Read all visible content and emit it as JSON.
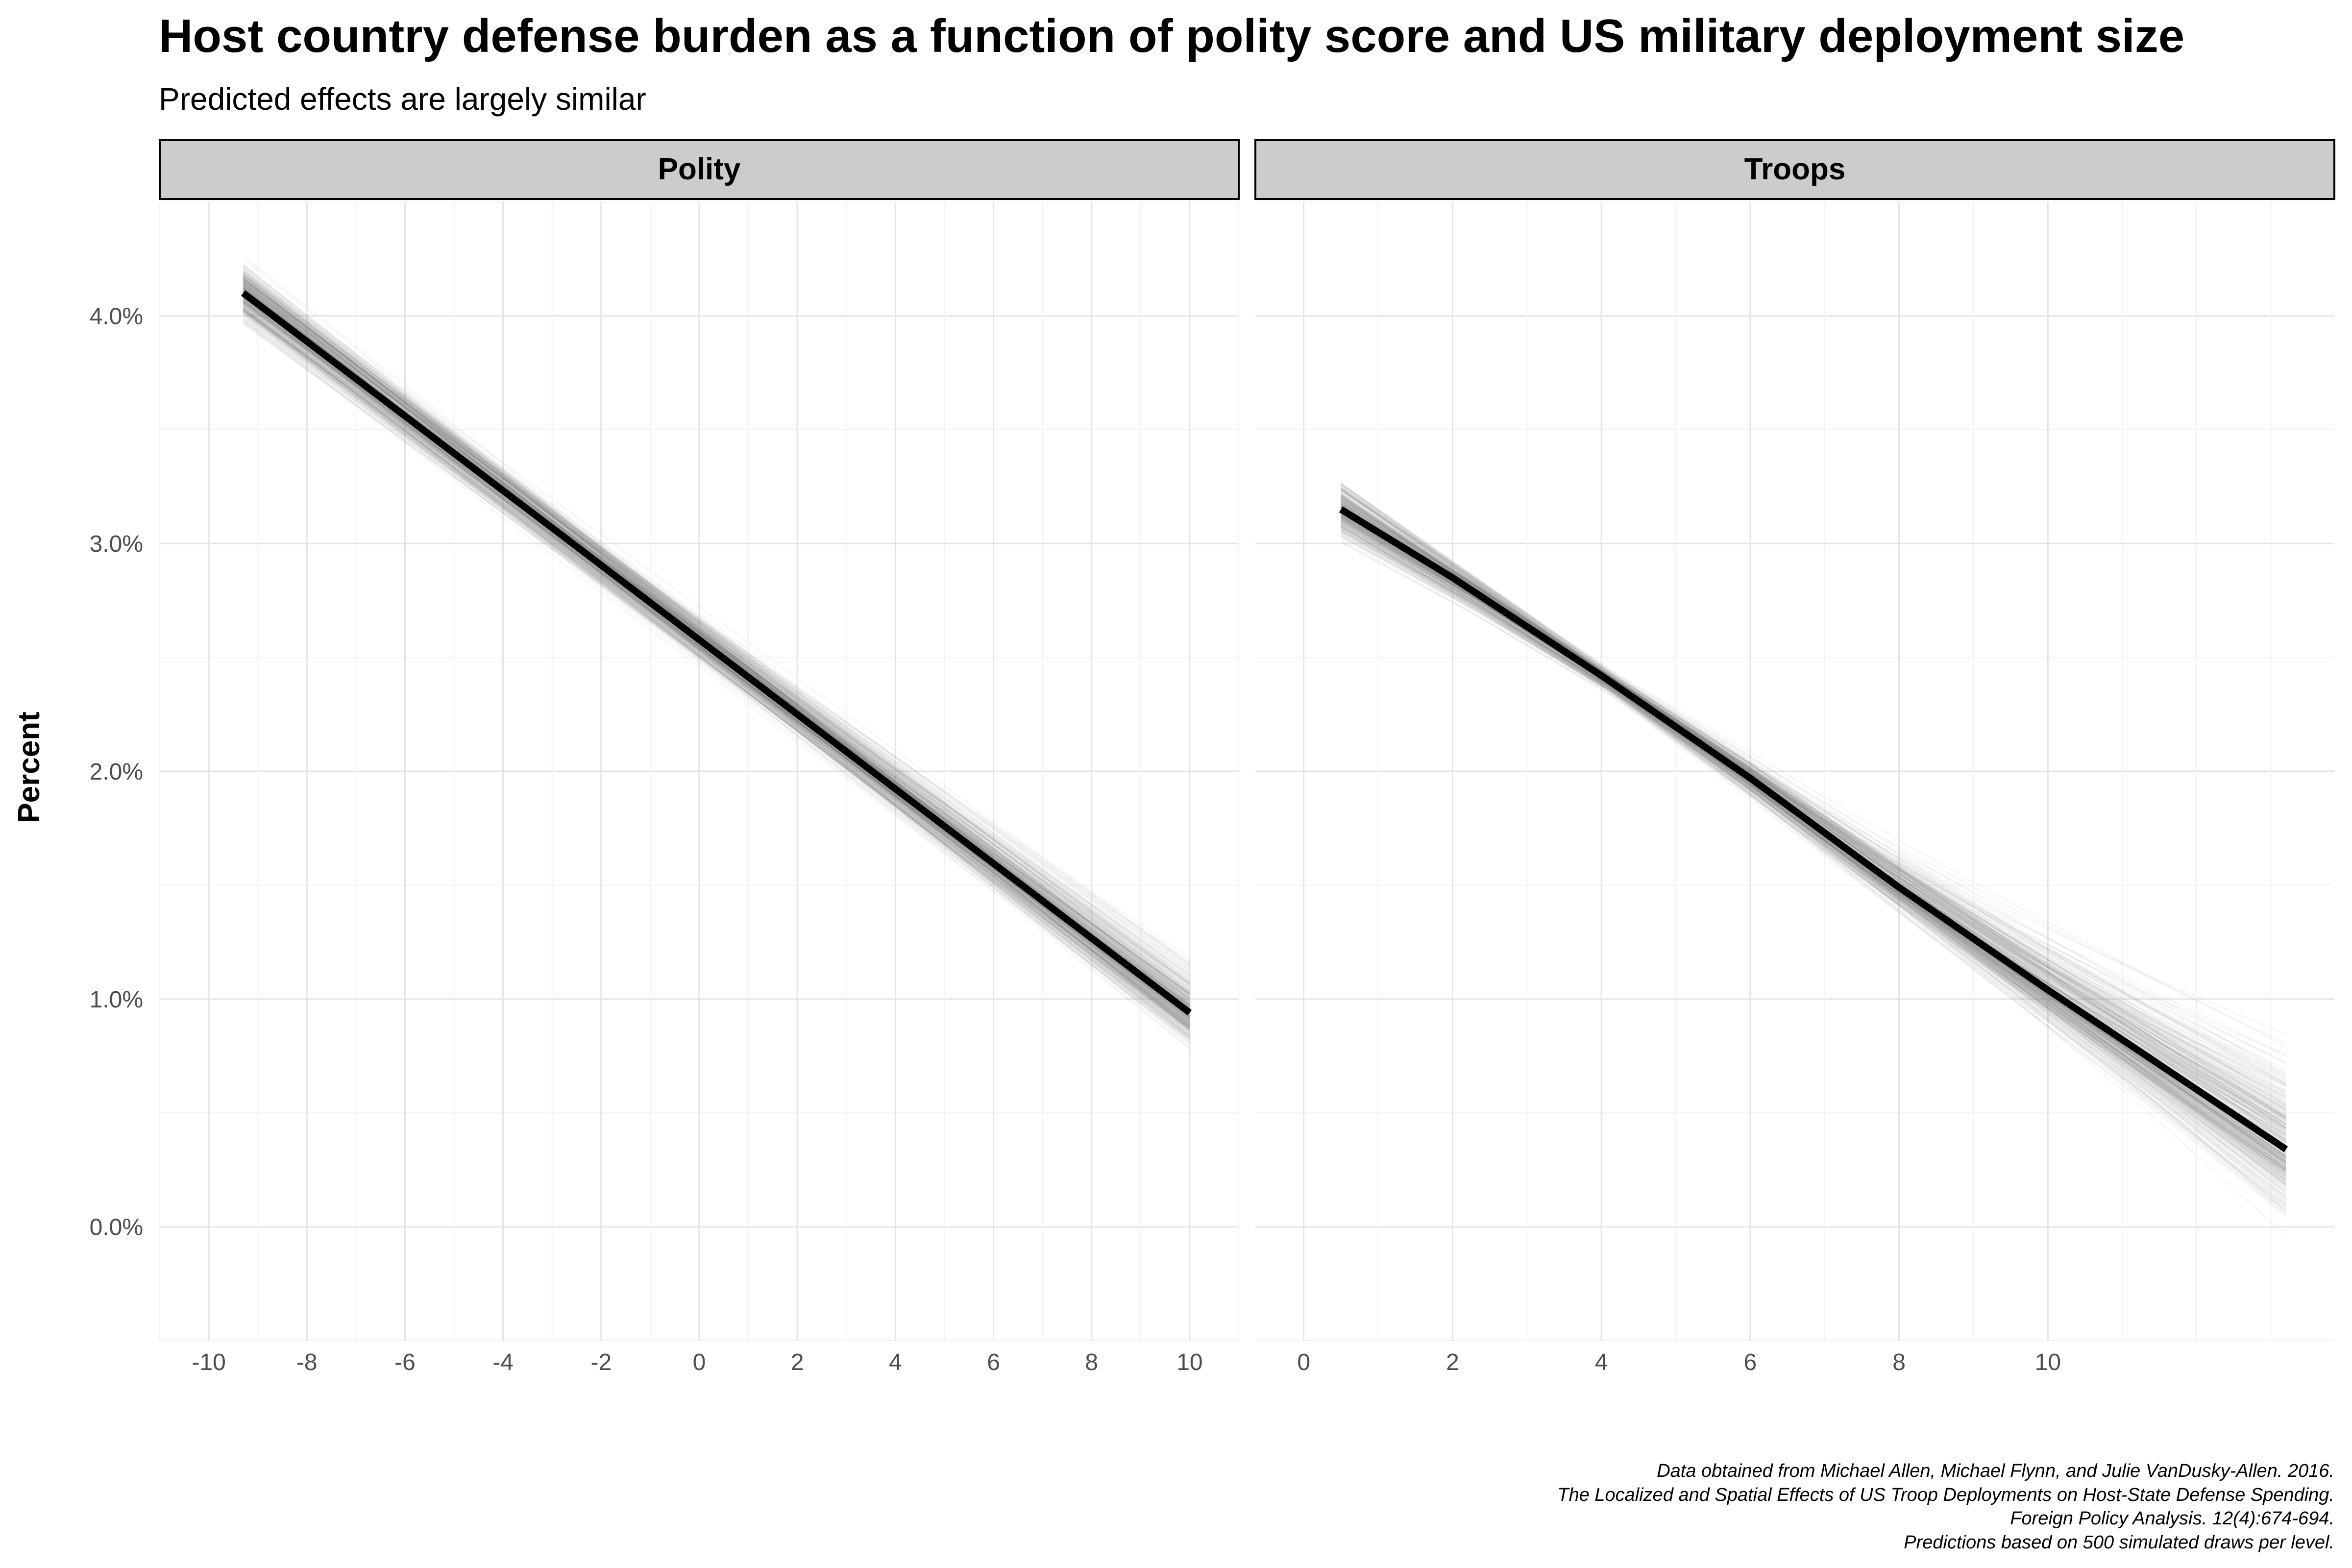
{
  "colors": {
    "background": "#ffffff",
    "strip_fill": "#cccccc",
    "strip_border": "#000000",
    "grid_major": "#e5e5e5",
    "grid_minor": "#f2f2f2",
    "draw_line": "#808080",
    "mean_line": "#000000",
    "tick_text": "#4d4d4d"
  },
  "chart_data": {
    "type": "line",
    "title": "Host country defense burden as a function of polity score and US military deployment size",
    "subtitle": "Predicted effects are largely similar",
    "ylabel": "Percent",
    "caption": [
      "Data obtained from Michael Allen, Michael Flynn, and Julie VanDusky-Allen. 2016.",
      "The Localized and Spatial Effects of US Troop Deployments on Host-State Defense Spending.",
      "Foreign Policy Analysis. 12(4):674-694.",
      "Predictions based on 500 simulated draws per level."
    ],
    "y_unit": "percent",
    "ylim": [
      -0.5,
      4.5
    ],
    "y_ticks": [
      0,
      1,
      2,
      3,
      4
    ],
    "y_tick_labels": [
      "0.0%",
      "1.0%",
      "2.0%",
      "3.0%",
      "4.0%"
    ],
    "grid": true,
    "legend": "none",
    "simulated_draws_per_level": 500,
    "panels": [
      {
        "label": "Polity",
        "xlim": [
          -11,
          11
        ],
        "x_ticks": [
          -10,
          -8,
          -6,
          -4,
          -2,
          0,
          2,
          4,
          6,
          8,
          10
        ],
        "x_tick_labels": [
          "-10",
          "-8",
          "-6",
          "-4",
          "-2",
          "0",
          "2",
          "4",
          "6",
          "8",
          "10"
        ],
        "mean_line": {
          "x": [
            -9.3,
            10
          ],
          "y": [
            4.1,
            0.94
          ]
        },
        "draw_band": {
          "x": [
            -9.3,
            10
          ],
          "y_low": [
            3.8,
            0.65
          ],
          "y_high": [
            4.38,
            1.35
          ]
        }
      },
      {
        "label": "Troops",
        "xlim": [
          -0.65,
          13.85
        ],
        "x_ticks": [
          0,
          2,
          4,
          6,
          8,
          10
        ],
        "x_tick_labels": [
          "0",
          "2",
          "4",
          "6",
          "8",
          "10"
        ],
        "mean_line": {
          "x": [
            0.5,
            2,
            4,
            6,
            8,
            10,
            13.2
          ],
          "y": [
            3.15,
            2.85,
            2.42,
            1.97,
            1.49,
            1.04,
            0.34
          ]
        },
        "draw_band": {
          "x": [
            0.5,
            4,
            13.2
          ],
          "y_low": [
            2.9,
            2.3,
            -0.22
          ],
          "y_high": [
            3.43,
            2.55,
            1.17
          ]
        }
      }
    ]
  }
}
